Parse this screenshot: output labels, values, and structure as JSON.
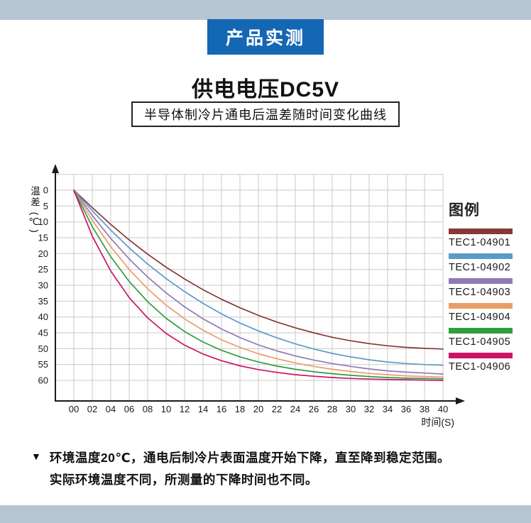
{
  "banner": {
    "label": "产品实测"
  },
  "title": "供电电压DC5V",
  "subtitle": "半导体制冷片通电后温差随时间变化曲线",
  "legend": {
    "title": "图例"
  },
  "note": {
    "marker": "▼",
    "line1": "环境温度20℃，通电后制冷片表面温度开始下降，直至降到稳定范围。",
    "line2": "实际环境温度不同，所测量的下降时间也不同。"
  },
  "colors": {
    "band": "#b7c4d2",
    "banner_bg": "#1467b3",
    "banner_text": "#ffffff",
    "grid": "#c9c9c9",
    "axis": "#1a1a1a"
  },
  "chart_data": {
    "type": "line",
    "title": "供电电压DC5V",
    "subtitle": "半导体制冷片通电后温差随时间变化曲线",
    "xlabel": "时间(S)",
    "ylabel": "温差 (℃)",
    "x": [
      0,
      2,
      4,
      6,
      8,
      10,
      12,
      14,
      16,
      18,
      20,
      22,
      24,
      26,
      28,
      30,
      32,
      34,
      36,
      38,
      40
    ],
    "x_tick_labels": [
      "00",
      "02",
      "04",
      "06",
      "08",
      "10",
      "12",
      "14",
      "16",
      "18",
      "20",
      "22",
      "24",
      "26",
      "28",
      "30",
      "32",
      "34",
      "36",
      "38",
      "40"
    ],
    "y_ticks": [
      0,
      5,
      10,
      15,
      20,
      25,
      30,
      35,
      40,
      45,
      50,
      55,
      60
    ],
    "ylim": [
      0,
      60
    ],
    "y_axis_inverted": true,
    "grid": true,
    "legend_position": "right",
    "series": [
      {
        "name": "TEC1-04901",
        "color": "#853a38",
        "values": [
          0,
          5.5,
          10.8,
          15.7,
          20.2,
          24.3,
          28.0,
          31.4,
          34.4,
          37.1,
          39.5,
          41.6,
          43.4,
          45.0,
          46.4,
          47.5,
          48.4,
          49.1,
          49.6,
          49.9,
          50.1
        ]
      },
      {
        "name": "TEC1-04902",
        "color": "#5d9bc7",
        "values": [
          0,
          6.5,
          12.6,
          18.2,
          23.3,
          27.9,
          32.0,
          35.7,
          39.0,
          41.9,
          44.4,
          46.6,
          48.5,
          50.1,
          51.5,
          52.6,
          53.5,
          54.2,
          54.7,
          55.0,
          55.2
        ]
      },
      {
        "name": "TEC1-04903",
        "color": "#8f7bb5",
        "values": [
          0,
          8.0,
          15.2,
          21.7,
          27.4,
          32.4,
          36.8,
          40.6,
          43.8,
          46.5,
          48.8,
          50.7,
          52.3,
          53.6,
          54.7,
          55.6,
          56.4,
          57.0,
          57.4,
          57.7,
          58.0
        ]
      },
      {
        "name": "TEC1-04904",
        "color": "#ea9d66",
        "values": [
          0,
          9.5,
          17.8,
          25.0,
          31.1,
          36.3,
          40.6,
          44.2,
          47.2,
          49.6,
          51.6,
          53.2,
          54.5,
          55.6,
          56.5,
          57.2,
          57.8,
          58.2,
          58.6,
          58.8,
          59.0
        ]
      },
      {
        "name": "TEC1-04905",
        "color": "#2f9e3f",
        "values": [
          0,
          11.5,
          21.0,
          28.8,
          35.2,
          40.4,
          44.6,
          47.9,
          50.5,
          52.6,
          54.2,
          55.5,
          56.5,
          57.3,
          57.9,
          58.4,
          58.8,
          59.1,
          59.3,
          59.4,
          59.5
        ]
      },
      {
        "name": "TEC1-04906",
        "color": "#cc1466",
        "values": [
          0,
          14.5,
          25.5,
          33.9,
          40.3,
          45.2,
          48.9,
          51.7,
          53.8,
          55.4,
          56.6,
          57.5,
          58.2,
          58.7,
          59.1,
          59.4,
          59.6,
          59.7,
          59.8,
          59.9,
          60.0
        ]
      }
    ]
  }
}
